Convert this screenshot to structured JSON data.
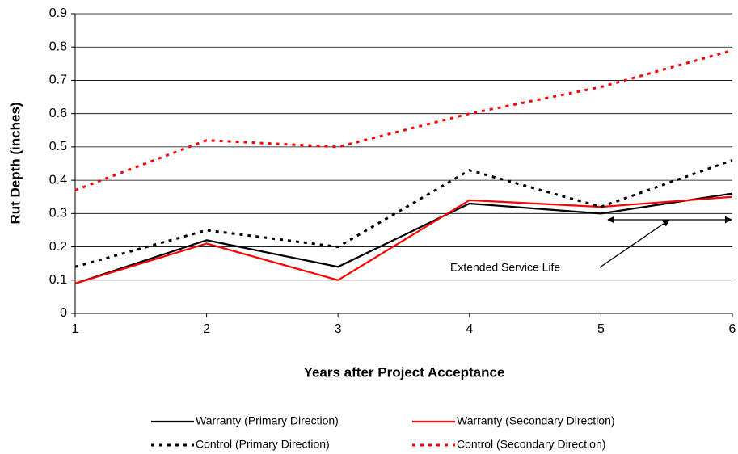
{
  "chart_data": {
    "type": "line",
    "x_label": "Years after Project Acceptance",
    "y_label": "Rut Depth (inches)",
    "x": [
      1,
      2,
      3,
      4,
      5,
      6
    ],
    "xlim": [
      1,
      6
    ],
    "xticks": [
      1,
      2,
      3,
      4,
      5,
      6
    ],
    "ylim": [
      0,
      0.9
    ],
    "yticks": [
      0,
      0.1,
      0.2,
      0.3,
      0.4,
      0.5,
      0.6,
      0.7,
      0.8,
      0.9
    ],
    "grid": true,
    "legend": "bottom",
    "annotation": "Extended Service Life",
    "series": [
      {
        "name": "Warranty (Primary Direction)",
        "color": "#000000",
        "style": "solid",
        "values": [
          0.09,
          0.22,
          0.14,
          0.33,
          0.3,
          0.36
        ]
      },
      {
        "name": "Warranty (Secondary Direction)",
        "color": "#ff0000",
        "style": "solid",
        "values": [
          0.09,
          0.21,
          0.1,
          0.34,
          0.32,
          0.35
        ]
      },
      {
        "name": "Control (Primary Direction)",
        "color": "#000000",
        "style": "dashed",
        "values": [
          0.14,
          0.25,
          0.2,
          0.43,
          0.32,
          0.46
        ]
      },
      {
        "name": "Control (Secondary Direction)",
        "color": "#ff0000",
        "style": "dashed",
        "values": [
          0.37,
          0.52,
          0.5,
          0.6,
          0.68,
          0.79
        ]
      }
    ]
  }
}
